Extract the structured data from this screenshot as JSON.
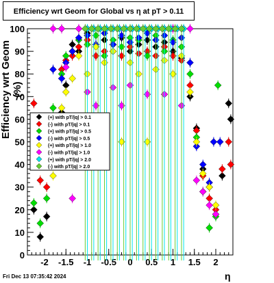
{
  "chart_data": {
    "type": "scatter",
    "title": "Efficiency wrt Geom for Global vs    η  at pT > 0.11",
    "xlabel": "η",
    "ylabel": "Efficiency wrt Geom (%)",
    "xlim": [
      -2.4,
      2.4
    ],
    "ylim": [
      0,
      100
    ],
    "x_ticks": [
      "-2",
      "-1.5",
      "-1",
      "-0.5",
      "0",
      "0.5",
      "1",
      "1.5",
      "2"
    ],
    "y_ticks": [
      "0",
      "10",
      "20",
      "30",
      "40",
      "50",
      "60",
      "70",
      "80",
      "90",
      "100"
    ],
    "grid": false,
    "legend_placement": "center-left",
    "series": [
      {
        "name": "(+) with pT/|q| > 0.1",
        "color": "#000000",
        "points": [
          [
            -2.25,
            20
          ],
          [
            -2.1,
            8
          ],
          [
            -1.95,
            17
          ],
          [
            -1.8,
            55
          ],
          [
            -1.6,
            63
          ],
          [
            -1.5,
            75
          ],
          [
            -1.35,
            93
          ],
          [
            -1.2,
            90
          ],
          [
            -1.0,
            98
          ],
          [
            -0.8,
            92
          ],
          [
            -0.6,
            95
          ],
          [
            -0.4,
            90
          ],
          [
            -0.2,
            96
          ],
          [
            0.0,
            90
          ],
          [
            0.2,
            93
          ],
          [
            0.4,
            95
          ],
          [
            0.6,
            92
          ],
          [
            0.8,
            94
          ],
          [
            1.0,
            90
          ],
          [
            1.2,
            87
          ],
          [
            1.4,
            70
          ],
          [
            1.55,
            56
          ],
          [
            1.7,
            38
          ],
          [
            1.85,
            30
          ],
          [
            2.0,
            18
          ],
          [
            2.15,
            35
          ],
          [
            2.3,
            67
          ],
          [
            2.35,
            60
          ]
        ]
      },
      {
        "name": "(-) with pT/|q| > 0.1",
        "color": "#ff0000",
        "points": [
          [
            -2.25,
            67
          ],
          [
            -2.1,
            33
          ],
          [
            -1.95,
            30
          ],
          [
            -1.8,
            60
          ],
          [
            -1.6,
            82
          ],
          [
            -1.5,
            86
          ],
          [
            -1.35,
            88
          ],
          [
            -1.2,
            92
          ],
          [
            -1.0,
            95
          ],
          [
            -0.8,
            88
          ],
          [
            -0.6,
            90
          ],
          [
            -0.4,
            93
          ],
          [
            -0.2,
            88
          ],
          [
            0.0,
            92
          ],
          [
            0.2,
            89
          ],
          [
            0.4,
            90
          ],
          [
            0.6,
            88
          ],
          [
            0.8,
            92
          ],
          [
            1.0,
            88
          ],
          [
            1.2,
            86
          ],
          [
            1.4,
            75
          ],
          [
            1.55,
            55
          ],
          [
            1.7,
            35
          ],
          [
            1.85,
            25
          ],
          [
            2.0,
            20
          ],
          [
            2.15,
            38
          ],
          [
            2.3,
            50
          ],
          [
            2.35,
            40
          ]
        ]
      },
      {
        "name": "(+) with pT/|q| > 0.5",
        "color": "#00dd00",
        "points": [
          [
            -2.25,
            23
          ],
          [
            -2.1,
            14
          ],
          [
            -1.95,
            25
          ],
          [
            -1.8,
            65
          ],
          [
            -1.6,
            80
          ],
          [
            -1.5,
            88
          ],
          [
            -1.35,
            90
          ],
          [
            -1.2,
            95
          ],
          [
            -1.0,
            93
          ],
          [
            -0.8,
            97
          ],
          [
            -0.6,
            88
          ],
          [
            -0.4,
            95
          ],
          [
            -0.2,
            92
          ],
          [
            0.0,
            96
          ],
          [
            0.2,
            95
          ],
          [
            0.4,
            88
          ],
          [
            0.6,
            97
          ],
          [
            0.8,
            90
          ],
          [
            1.0,
            95
          ],
          [
            1.2,
            92
          ],
          [
            1.4,
            80
          ],
          [
            1.55,
            52
          ],
          [
            1.7,
            28
          ],
          [
            1.85,
            12
          ],
          [
            2.0,
            17
          ],
          [
            2.05,
            75
          ]
        ]
      },
      {
        "name": "(-) with pT/|q| > 0.5",
        "color": "#0000ff",
        "points": [
          [
            -1.8,
            82
          ],
          [
            -1.6,
            78
          ],
          [
            -1.5,
            85
          ],
          [
            -1.35,
            90
          ],
          [
            -1.2,
            96
          ],
          [
            -1.0,
            97
          ],
          [
            -0.8,
            93
          ],
          [
            -0.6,
            98
          ],
          [
            -0.4,
            93
          ],
          [
            -0.2,
            97
          ],
          [
            0.0,
            94
          ],
          [
            0.2,
            96
          ],
          [
            0.4,
            98
          ],
          [
            0.6,
            95
          ],
          [
            0.8,
            97
          ],
          [
            1.0,
            94
          ],
          [
            1.2,
            96
          ],
          [
            1.4,
            85
          ],
          [
            1.55,
            48
          ],
          [
            1.7,
            40
          ],
          [
            1.85,
            32
          ],
          [
            1.95,
            50
          ],
          [
            2.1,
            50
          ]
        ]
      },
      {
        "name": "(+) with pT/|q| > 1.0",
        "color": "#ffff00",
        "points": [
          [
            -1.8,
            35
          ],
          [
            -1.6,
            65
          ],
          [
            -1.5,
            72
          ],
          [
            -1.35,
            78
          ],
          [
            -1.2,
            88
          ],
          [
            -1.0,
            80
          ],
          [
            -0.8,
            92
          ],
          [
            -0.6,
            85
          ],
          [
            -0.4,
            90
          ],
          [
            -0.2,
            50
          ],
          [
            0.0,
            85
          ],
          [
            0.2,
            80
          ],
          [
            0.4,
            50
          ],
          [
            0.6,
            82
          ],
          [
            0.8,
            86
          ],
          [
            1.0,
            80
          ],
          [
            1.2,
            88
          ],
          [
            1.4,
            72
          ],
          [
            1.55,
            50
          ],
          [
            1.7,
            36
          ],
          [
            1.85,
            30
          ],
          [
            2.0,
            22
          ]
        ]
      },
      {
        "name": "(-) with pT/|q| > 1.0",
        "color": "#ff00ff",
        "points": [
          [
            -1.8,
            100
          ],
          [
            -1.6,
            100
          ],
          [
            -1.5,
            83
          ],
          [
            -1.35,
            25
          ],
          [
            -1.2,
            100
          ],
          [
            -1.0,
            72
          ],
          [
            -0.8,
            66
          ],
          [
            -0.6,
            100
          ],
          [
            -0.4,
            74
          ],
          [
            -0.2,
            66
          ],
          [
            0.0,
            75
          ],
          [
            0.2,
            100
          ],
          [
            0.4,
            71
          ],
          [
            0.6,
            100
          ],
          [
            0.8,
            71
          ],
          [
            1.0,
            100
          ],
          [
            1.2,
            66
          ],
          [
            1.4,
            100
          ],
          [
            1.55,
            33
          ],
          [
            1.7,
            28
          ],
          [
            1.85,
            22
          ],
          [
            2.0,
            18
          ]
        ]
      },
      {
        "name": "(+) with pT/|q| > 2.0",
        "color": "#00e5ee",
        "points": [
          [
            -1.0,
            100
          ],
          [
            -0.85,
            100
          ],
          [
            -0.7,
            100
          ],
          [
            -0.55,
            100
          ],
          [
            -0.4,
            100
          ],
          [
            -0.25,
            100
          ],
          [
            -0.1,
            100
          ],
          [
            0.05,
            100
          ],
          [
            0.2,
            100
          ],
          [
            0.35,
            100
          ],
          [
            0.5,
            100
          ],
          [
            0.65,
            100
          ],
          [
            0.8,
            100
          ],
          [
            0.95,
            100
          ],
          [
            1.1,
            100
          ],
          [
            1.25,
            100
          ]
        ]
      },
      {
        "name": "(-) with pT/|q| > 2.0",
        "color": "#66cc33",
        "points": [
          [
            -1.05,
            100
          ],
          [
            -0.9,
            100
          ],
          [
            -0.75,
            100
          ],
          [
            -0.6,
            100
          ],
          [
            -0.45,
            100
          ],
          [
            -0.3,
            100
          ],
          [
            -0.15,
            100
          ],
          [
            0.0,
            100
          ],
          [
            0.15,
            100
          ],
          [
            0.3,
            100
          ],
          [
            0.45,
            100
          ],
          [
            0.6,
            100
          ],
          [
            0.75,
            100
          ],
          [
            0.9,
            100
          ],
          [
            1.05,
            100
          ],
          [
            1.2,
            100
          ]
        ]
      }
    ]
  },
  "footer": {
    "timestamp": "Fri Dec 13 07:35:42 2024"
  }
}
